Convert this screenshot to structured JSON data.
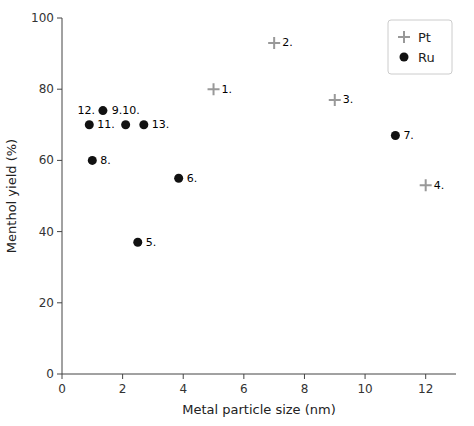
{
  "chart_data": {
    "type": "scatter",
    "x_label": "Metal particle size (nm)",
    "y_label": "Menthol yield (%)",
    "xlim": [
      0,
      13
    ],
    "ylim": [
      0,
      100
    ],
    "xticks": [
      0,
      2,
      4,
      6,
      8,
      10,
      12
    ],
    "yticks": [
      0,
      20,
      40,
      60,
      80,
      100
    ],
    "grid": false,
    "legend": "upper right",
    "series": [
      {
        "name": "Pt",
        "color": "#999999",
        "marker": "plus",
        "x": [
          5.0,
          7.0,
          9.0,
          12.0
        ],
        "values": [
          80,
          93,
          77,
          53
        ],
        "labels": [
          "1.",
          "2.",
          "3.",
          "4."
        ]
      },
      {
        "name": "Ru",
        "color": "#111111",
        "marker": "circle",
        "x": [
          2.5,
          3.85,
          11.0,
          1.0,
          2.1,
          1.35,
          0.9,
          2.7
        ],
        "values": [
          37,
          55,
          67,
          60,
          70,
          74,
          70,
          70
        ],
        "labels": [
          "5.",
          "6.",
          "7.",
          "8.",
          "9.10.",
          "12.",
          "11.",
          "13."
        ]
      }
    ]
  }
}
